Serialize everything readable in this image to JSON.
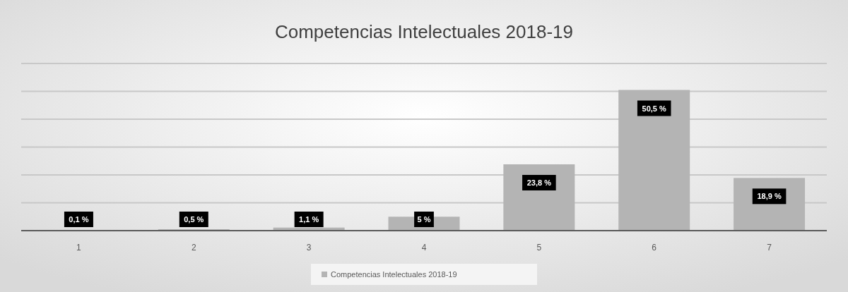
{
  "chart_data": {
    "type": "bar",
    "title": "Competencias Intelectuales 2018-19",
    "categories": [
      "1",
      "2",
      "3",
      "4",
      "5",
      "6",
      "7"
    ],
    "series": [
      {
        "name": "Competencias Intelectuales 2018-19",
        "color": "#b4b4b4",
        "values": [
          0.1,
          0.5,
          1.1,
          5,
          23.8,
          50.5,
          18.9
        ],
        "value_labels": [
          "0,1 %",
          "0,5 %",
          "1,1 %",
          "5 %",
          "23,8 %",
          "50,5 %",
          "18,9 %"
        ]
      }
    ],
    "ylim": [
      0,
      60
    ],
    "yticks": [
      {
        "value": 0,
        "label": null
      },
      {
        "value": 10,
        "label": null
      },
      {
        "value": 20,
        "label": null
      },
      {
        "value": 30,
        "label": null
      },
      {
        "value": 40,
        "label": null
      },
      {
        "value": 50,
        "label": null
      },
      {
        "value": 60,
        "label": null
      }
    ],
    "grid": "y",
    "tick_labels": "x",
    "legend": "bottom"
  }
}
